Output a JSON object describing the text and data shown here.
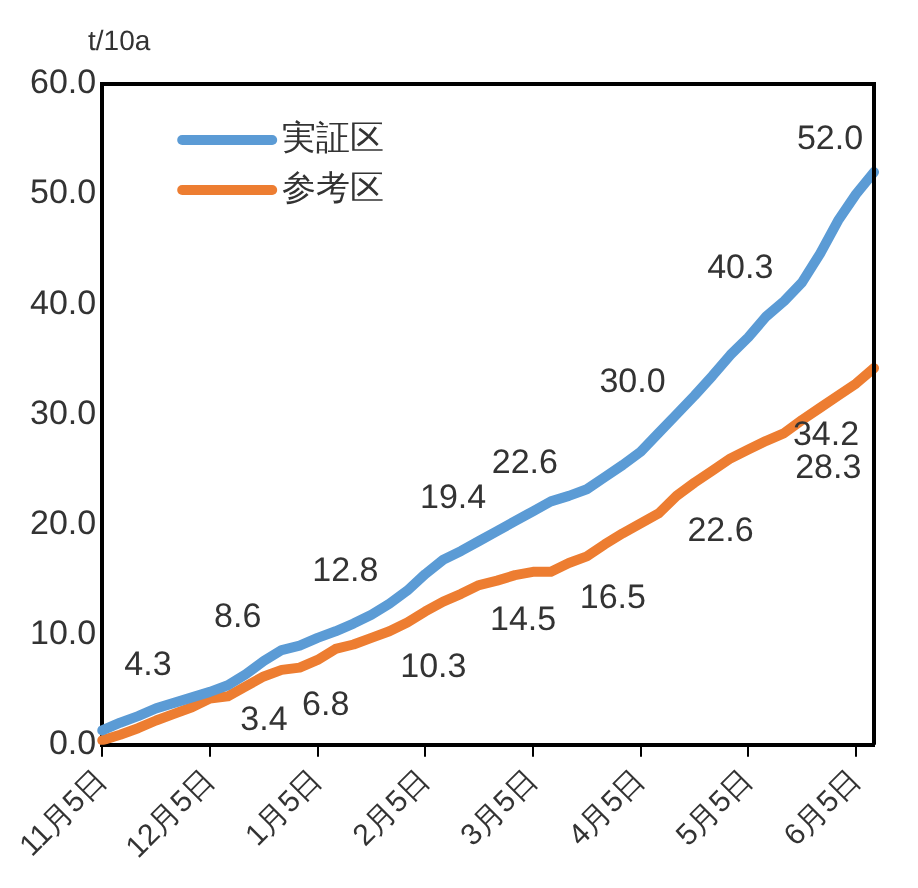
{
  "chart_data": {
    "type": "line",
    "ylabel": "t/10a",
    "categories": [
      "11月5日",
      null,
      null,
      null,
      null,
      null,
      "12月5日",
      null,
      null,
      null,
      null,
      null,
      "1月5日",
      null,
      null,
      null,
      null,
      null,
      "2月5日",
      null,
      null,
      null,
      null,
      null,
      "3月5日",
      null,
      null,
      null,
      null,
      null,
      "4月5日",
      null,
      null,
      null,
      null,
      null,
      "5月5日",
      null,
      null,
      null,
      null,
      null,
      "6月5日",
      null
    ],
    "ylim": [
      0,
      60
    ],
    "yticks": [
      {
        "value": 0,
        "label": "0.0"
      },
      {
        "value": 10,
        "label": "10.0"
      },
      {
        "value": 20,
        "label": "20.0"
      },
      {
        "value": 30,
        "label": "30.0"
      },
      {
        "value": 40,
        "label": "40.0"
      },
      {
        "value": 50,
        "label": "50.0"
      },
      {
        "value": 60,
        "label": "60.0"
      }
    ],
    "grid": false,
    "legend": "top left",
    "marker": "none",
    "line_style": "solid",
    "series": [
      {
        "name": "実証区",
        "color": "#5b9bd5",
        "values": [
          1.3,
          2.0,
          2.6,
          3.3,
          3.8,
          4.3,
          4.8,
          5.4,
          6.4,
          7.6,
          8.6,
          9.0,
          9.7,
          10.3,
          11.0,
          11.8,
          12.8,
          14.0,
          15.5,
          16.8,
          17.6,
          18.5,
          19.4,
          20.3,
          21.2,
          22.1,
          22.6,
          23.2,
          24.3,
          25.4,
          26.6,
          28.3,
          30.0,
          31.7,
          33.5,
          35.4,
          37.0,
          38.9,
          40.3,
          42.0,
          44.6,
          47.6,
          50.0,
          52.0
        ],
        "value_labels": [
          null,
          null,
          null,
          null,
          null,
          "4.3",
          null,
          null,
          null,
          null,
          "8.6",
          null,
          null,
          null,
          null,
          null,
          "12.8",
          null,
          null,
          null,
          null,
          null,
          "19.4",
          null,
          null,
          null,
          "22.6",
          null,
          null,
          null,
          null,
          null,
          "30.0",
          null,
          null,
          null,
          null,
          null,
          "40.3",
          null,
          null,
          null,
          null,
          "52.0"
        ]
      },
      {
        "name": "参考区",
        "color": "#ed7d31",
        "values": [
          0.4,
          0.9,
          1.5,
          2.2,
          2.8,
          3.4,
          4.2,
          4.4,
          5.3,
          6.2,
          6.8,
          7.0,
          7.7,
          8.7,
          9.1,
          9.7,
          10.3,
          11.1,
          12.1,
          13.0,
          13.7,
          14.5,
          14.9,
          15.4,
          15.7,
          15.7,
          16.5,
          17.1,
          18.2,
          19.2,
          20.1,
          21.0,
          22.6,
          23.8,
          24.9,
          26.0,
          26.8,
          27.6,
          28.3,
          29.5,
          30.6,
          31.7,
          32.8,
          34.2
        ],
        "value_labels": [
          null,
          null,
          null,
          null,
          null,
          "3.4",
          null,
          null,
          null,
          null,
          "6.8",
          null,
          null,
          null,
          null,
          null,
          "10.3",
          null,
          null,
          null,
          null,
          "14.5",
          null,
          null,
          null,
          null,
          "16.5",
          null,
          null,
          null,
          null,
          null,
          "22.6",
          null,
          null,
          null,
          null,
          null,
          "28.3",
          null,
          null,
          null,
          null,
          "34.2"
        ]
      }
    ]
  }
}
